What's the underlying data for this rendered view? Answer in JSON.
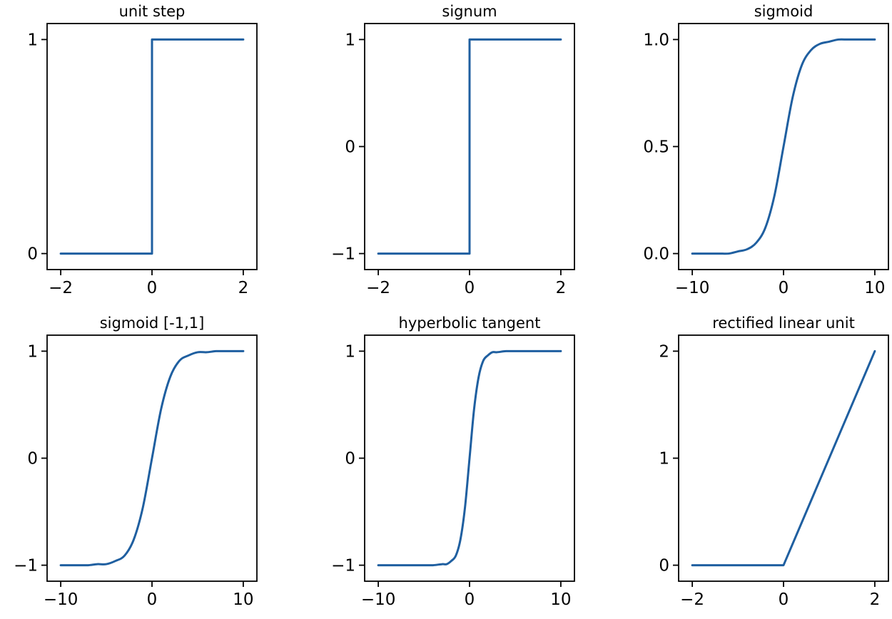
{
  "colors": {
    "line": "#1f5fa0",
    "axes": "#000000",
    "background": "#ffffff"
  },
  "chart_data": [
    {
      "type": "line",
      "title": "unit step",
      "xlim": [
        -2,
        2
      ],
      "ylim": [
        0,
        1
      ],
      "xticks": [
        -2,
        0,
        2
      ],
      "xtick_labels": [
        "−2",
        "0",
        "2"
      ],
      "yticks": [
        0,
        1
      ],
      "ytick_labels": [
        "0",
        "1"
      ],
      "grid": false,
      "series": [
        {
          "x": [
            -2,
            0,
            0,
            2
          ],
          "y": [
            0,
            0,
            1,
            1
          ]
        }
      ]
    },
    {
      "type": "line",
      "title": "signum",
      "xlim": [
        -2,
        2
      ],
      "ylim": [
        -1,
        1
      ],
      "xticks": [
        -2,
        0,
        2
      ],
      "xtick_labels": [
        "−2",
        "0",
        "2"
      ],
      "yticks": [
        -1,
        0,
        1
      ],
      "ytick_labels": [
        "−1",
        "0",
        "1"
      ],
      "grid": false,
      "series": [
        {
          "x": [
            -2,
            0,
            0,
            2
          ],
          "y": [
            -1,
            -1,
            1,
            1
          ]
        }
      ]
    },
    {
      "type": "line",
      "title": "sigmoid",
      "xlim": [
        -10,
        10
      ],
      "ylim": [
        0,
        1
      ],
      "xticks": [
        -10,
        0,
        10
      ],
      "xtick_labels": [
        "−10",
        "0",
        "10"
      ],
      "yticks": [
        0,
        0.5,
        1
      ],
      "ytick_labels": [
        "0.0",
        "0.5",
        "1.0"
      ],
      "grid": false,
      "series": [
        {
          "x": [
            -10,
            -9,
            -8,
            -7,
            -6,
            -5,
            -4,
            -3,
            -2,
            -1,
            0,
            1,
            2,
            3,
            4,
            5,
            6,
            7,
            8,
            9,
            10
          ],
          "y": [
            0.0,
            0.0,
            0.0,
            0.0,
            0.0,
            0.01,
            0.02,
            0.05,
            0.12,
            0.27,
            0.5,
            0.73,
            0.88,
            0.95,
            0.98,
            0.99,
            1.0,
            1.0,
            1.0,
            1.0,
            1.0
          ]
        }
      ]
    },
    {
      "type": "line",
      "title": "sigmoid [-1,1]",
      "xlim": [
        -10,
        10
      ],
      "ylim": [
        -1,
        1
      ],
      "xticks": [
        -10,
        0,
        10
      ],
      "xtick_labels": [
        "−10",
        "0",
        "10"
      ],
      "yticks": [
        -1,
        0,
        1
      ],
      "ytick_labels": [
        "−1",
        "0",
        "1"
      ],
      "grid": false,
      "series": [
        {
          "x": [
            -10,
            -9,
            -8,
            -7,
            -6,
            -5,
            -4,
            -3,
            -2,
            -1,
            0,
            1,
            2,
            3,
            4,
            5,
            6,
            7,
            8,
            9,
            10
          ],
          "y": [
            -1.0,
            -1.0,
            -1.0,
            -1.0,
            -0.99,
            -0.99,
            -0.96,
            -0.91,
            -0.76,
            -0.46,
            0.0,
            0.46,
            0.76,
            0.91,
            0.96,
            0.99,
            0.99,
            1.0,
            1.0,
            1.0,
            1.0
          ]
        }
      ]
    },
    {
      "type": "line",
      "title": "hyperbolic tangent",
      "xlim": [
        -10,
        10
      ],
      "ylim": [
        -1,
        1
      ],
      "xticks": [
        -10,
        0,
        10
      ],
      "xtick_labels": [
        "−10",
        "0",
        "10"
      ],
      "yticks": [
        -1,
        0,
        1
      ],
      "ytick_labels": [
        "−1",
        "0",
        "1"
      ],
      "grid": false,
      "series": [
        {
          "x": [
            -10,
            -5,
            -4,
            -3,
            -2.5,
            -2,
            -1.5,
            -1,
            -0.5,
            0,
            0.5,
            1,
            1.5,
            2,
            2.5,
            3,
            4,
            5,
            10
          ],
          "y": [
            -1.0,
            -1.0,
            -1.0,
            -0.99,
            -0.99,
            -0.96,
            -0.91,
            -0.76,
            -0.46,
            0.0,
            0.46,
            0.76,
            0.91,
            0.96,
            0.99,
            0.99,
            1.0,
            1.0,
            1.0
          ]
        }
      ]
    },
    {
      "type": "line",
      "title": "rectified linear unit",
      "xlim": [
        -2,
        2
      ],
      "ylim": [
        0,
        2
      ],
      "xticks": [
        -2,
        0,
        2
      ],
      "xtick_labels": [
        "−2",
        "0",
        "2"
      ],
      "yticks": [
        0,
        1,
        2
      ],
      "ytick_labels": [
        "0",
        "1",
        "2"
      ],
      "grid": false,
      "series": [
        {
          "x": [
            -2,
            0,
            2
          ],
          "y": [
            0,
            0,
            2
          ]
        }
      ]
    }
  ]
}
